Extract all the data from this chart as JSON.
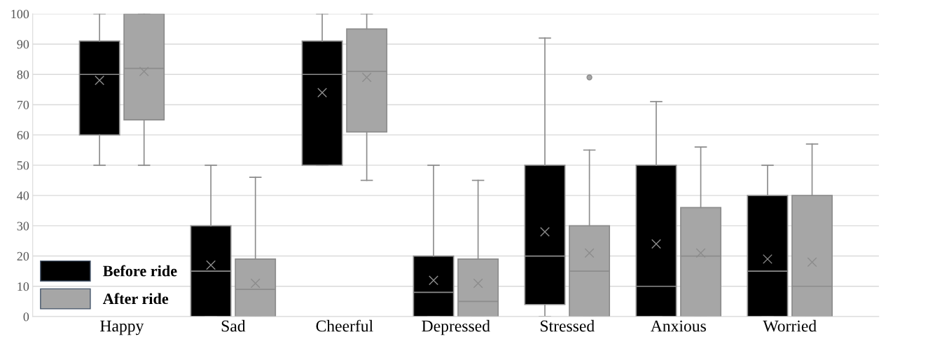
{
  "chart_data": {
    "type": "box",
    "categories": [
      "Happy",
      "Sad",
      "Cheerful",
      "Depressed",
      "Stressed",
      "Anxious",
      "Worried"
    ],
    "series": [
      {
        "name": "Before ride",
        "color": "#000000",
        "boxes": [
          {
            "low": 50,
            "q1": 60,
            "median": 80,
            "q3": 91,
            "high": 100,
            "mean": 78
          },
          {
            "low": 0,
            "q1": 0,
            "median": 15,
            "q3": 30,
            "high": 50,
            "mean": 17
          },
          {
            "low": 50,
            "q1": 50,
            "median": 80,
            "q3": 91,
            "high": 100,
            "mean": 74
          },
          {
            "low": 0,
            "q1": 0,
            "median": 8,
            "q3": 20,
            "high": 50,
            "mean": 12
          },
          {
            "low": 0,
            "q1": 4,
            "median": 20,
            "q3": 50,
            "high": 92,
            "mean": 28
          },
          {
            "low": 0,
            "q1": 0,
            "median": 10,
            "q3": 50,
            "high": 71,
            "mean": 24
          },
          {
            "low": 0,
            "q1": 0,
            "median": 15,
            "q3": 40,
            "high": 50,
            "mean": 19
          }
        ]
      },
      {
        "name": "After ride",
        "color": "#a6a6a6",
        "boxes": [
          {
            "low": 50,
            "q1": 65,
            "median": 82,
            "q3": 100,
            "high": 100,
            "mean": 81
          },
          {
            "low": 0,
            "q1": 0,
            "median": 9,
            "q3": 19,
            "high": 46,
            "mean": 11
          },
          {
            "low": 45,
            "q1": 61,
            "median": 81,
            "q3": 95,
            "high": 100,
            "mean": 79
          },
          {
            "low": 0,
            "q1": 0,
            "median": 5,
            "q3": 19,
            "high": 45,
            "mean": 11
          },
          {
            "low": 0,
            "q1": 0,
            "median": 15,
            "q3": 30,
            "high": 55,
            "mean": 21,
            "outliers": [
              79
            ]
          },
          {
            "low": 0,
            "q1": 0,
            "median": 20,
            "q3": 36,
            "high": 56,
            "mean": 21
          },
          {
            "low": 0,
            "q1": 0,
            "median": 10,
            "q3": 40,
            "high": 57,
            "mean": 18
          }
        ]
      }
    ],
    "ylim": [
      0,
      100
    ],
    "yticks": [
      0,
      10,
      20,
      30,
      40,
      50,
      60,
      70,
      80,
      90,
      100
    ],
    "grid": "y",
    "legend": "bottom left"
  }
}
